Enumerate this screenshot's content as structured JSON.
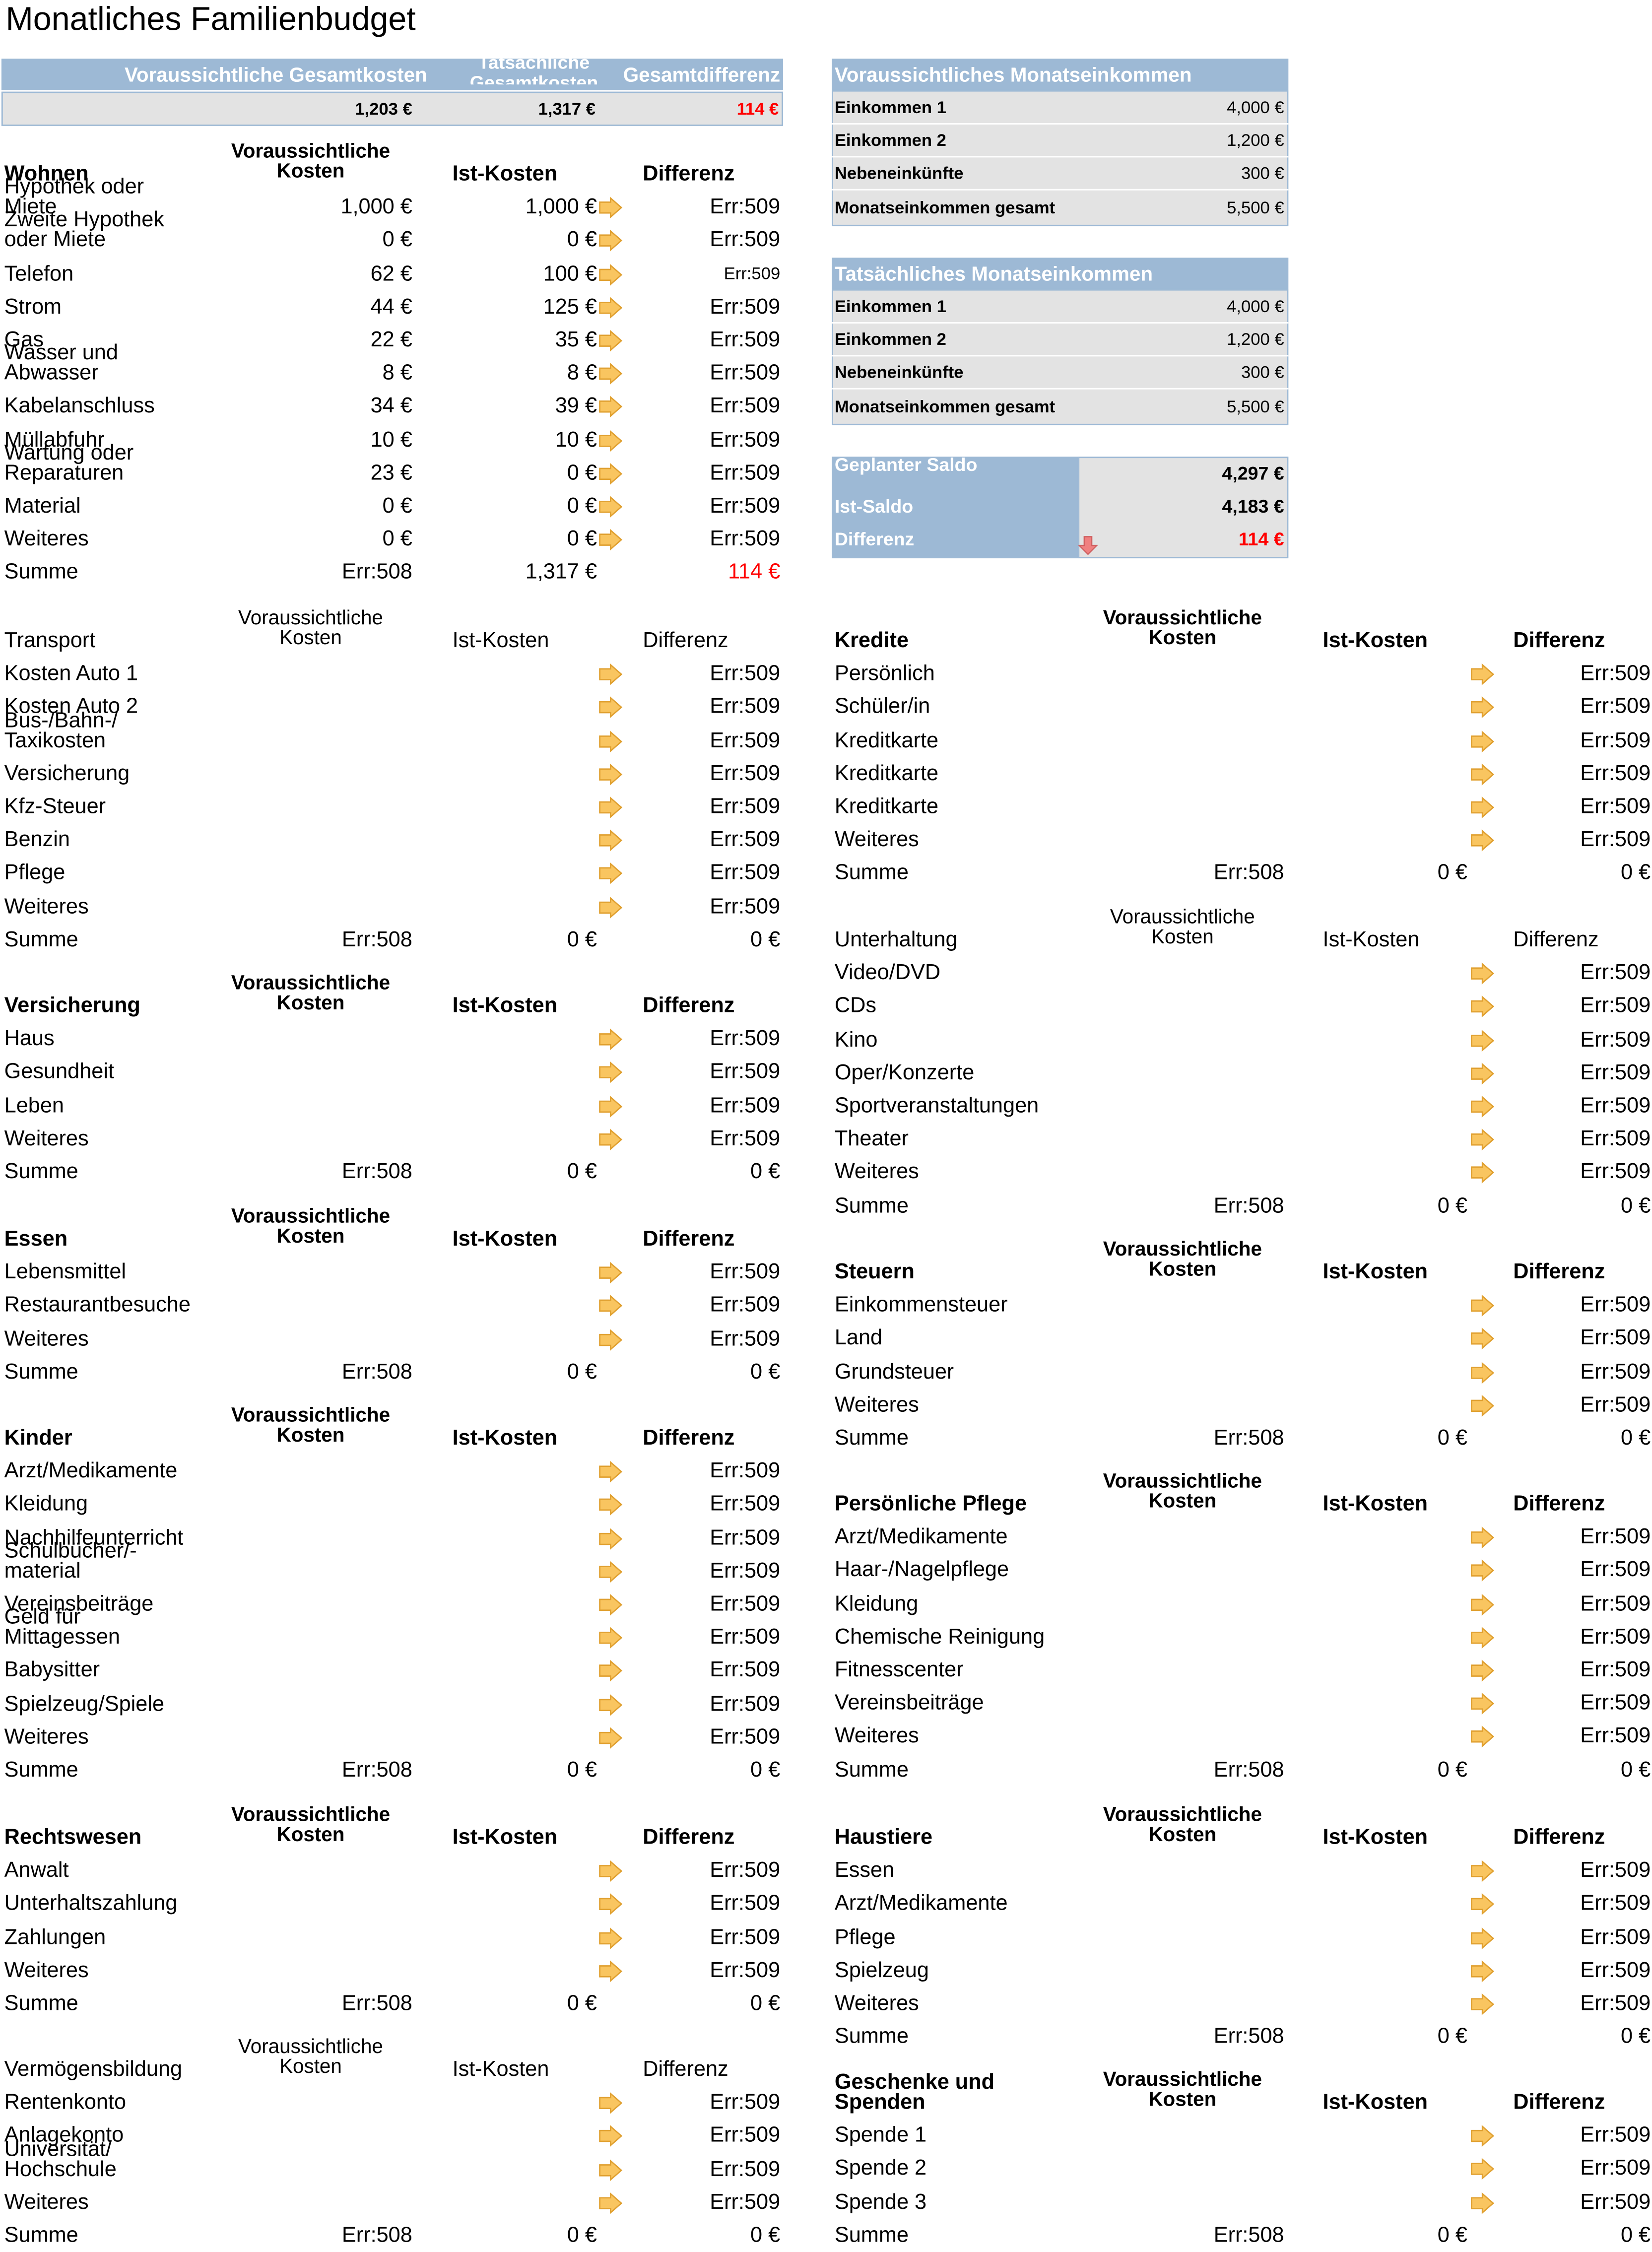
{
  "title": "Monatliches Familienbudget",
  "summary": {
    "headers": [
      "Voraussichtliche Gesamtkosten",
      "Tatsächliche Gesamtkosten",
      "Gesamtdifferenz"
    ],
    "values": [
      "1,203 €",
      "1,317 €",
      "114 €"
    ]
  },
  "income_projected": {
    "header": "Voraussichtliches Monatseinkommen",
    "rows": [
      {
        "label": "Einkommen 1",
        "value": "4,000 €"
      },
      {
        "label": "Einkommen 2",
        "value": "1,200 €"
      },
      {
        "label": "Nebeneinkünfte",
        "value": "300 €"
      },
      {
        "label": "Monatseinkommen gesamt",
        "value": "5,500 €"
      }
    ]
  },
  "income_actual": {
    "header": "Tatsächliches Monatseinkommen",
    "rows": [
      {
        "label": "Einkommen 1",
        "value": "4,000 €"
      },
      {
        "label": "Einkommen 2",
        "value": "1,200 €"
      },
      {
        "label": "Nebeneinkünfte",
        "value": "300 €"
      },
      {
        "label": "Monatseinkommen gesamt",
        "value": "5,500 €"
      }
    ]
  },
  "balance": {
    "rows": [
      {
        "label": "Geplanter Saldo",
        "value": "4,297 €"
      },
      {
        "label": "Ist-Saldo",
        "value": "4,183 €"
      },
      {
        "label": "Differenz",
        "value": "114 €"
      }
    ]
  },
  "colors": {
    "header_blue": "#9db9d5",
    "grey": "#e3e3e3",
    "arrow_orange": "#f9c560",
    "arrow_red": "#f08080",
    "text_red": "#ff0000"
  },
  "col_headers": {
    "projected": "Voraussichtliche Kosten",
    "actual": "Ist-Kosten",
    "diff": "Differenz"
  },
  "sections": [
    {
      "title": "Wohnen",
      "bold": true,
      "rows": [
        {
          "label": "Hypothek oder Miete",
          "two": true,
          "p": "1,000 €",
          "a": "1,000 €",
          "d": "Err:509"
        },
        {
          "label": "Zweite Hypothek oder Miete",
          "two": true,
          "p": "0 €",
          "a": "0 €",
          "d": "Err:509"
        },
        {
          "label": "Telefon",
          "p": "62 €",
          "a": "100 €",
          "d": "Err:509",
          "dsmall": true
        },
        {
          "label": "Strom",
          "p": "44 €",
          "a": "125 €",
          "d": "Err:509"
        },
        {
          "label": "Gas",
          "p": "22 €",
          "a": "35 €",
          "d": "Err:509"
        },
        {
          "label": "Wasser und Abwasser",
          "two": true,
          "p": "8 €",
          "a": "8 €",
          "d": "Err:509"
        },
        {
          "label": "Kabelanschluss",
          "p": "34 €",
          "a": "39 €",
          "d": "Err:509"
        },
        {
          "label": "Müllabfuhr",
          "p": "10 €",
          "a": "10 €",
          "d": "Err:509"
        },
        {
          "label": "Wartung oder Reparaturen",
          "two": true,
          "p": "23 €",
          "a": "0 €",
          "d": "Err:509"
        },
        {
          "label": "Material",
          "p": "0 €",
          "a": "0 €",
          "d": "Err:509"
        },
        {
          "label": "Weiteres",
          "p": "0 €",
          "a": "0 €",
          "d": "Err:509"
        }
      ],
      "sum": {
        "label": "Summe",
        "p": "Err:508",
        "a": "1,317 €",
        "d": "114 €",
        "dred": true
      }
    },
    {
      "title": "Transport",
      "bold": false,
      "rows": [
        {
          "label": "Kosten Auto 1",
          "d": "Err:509"
        },
        {
          "label": "Kosten Auto 2",
          "d": "Err:509"
        },
        {
          "label": "Bus-/Bahn-/ Taxikosten",
          "two": true,
          "d": "Err:509"
        },
        {
          "label": "Versicherung",
          "d": "Err:509"
        },
        {
          "label": "Kfz-Steuer",
          "d": "Err:509"
        },
        {
          "label": "Benzin",
          "d": "Err:509"
        },
        {
          "label": "Pflege",
          "d": "Err:509"
        },
        {
          "label": "Weiteres",
          "d": "Err:509"
        }
      ],
      "sum": {
        "label": "Summe",
        "p": "Err:508",
        "a": "0 €",
        "d": "0 €"
      }
    },
    {
      "title": "Versicherung",
      "bold": true,
      "rows": [
        {
          "label": "Haus",
          "d": "Err:509"
        },
        {
          "label": "Gesundheit",
          "d": "Err:509"
        },
        {
          "label": "Leben",
          "d": "Err:509"
        },
        {
          "label": "Weiteres",
          "d": "Err:509"
        }
      ],
      "sum": {
        "label": "Summe",
        "p": "Err:508",
        "a": "0 €",
        "d": "0 €"
      }
    },
    {
      "title": "Essen",
      "bold": true,
      "rows": [
        {
          "label": "Lebensmittel",
          "d": "Err:509"
        },
        {
          "label": "Restaurantbesuche",
          "d": "Err:509"
        },
        {
          "label": "Weiteres",
          "d": "Err:509"
        }
      ],
      "sum": {
        "label": "Summe",
        "p": "Err:508",
        "a": "0 €",
        "d": "0 €"
      }
    },
    {
      "title": "Kinder",
      "bold": true,
      "rows": [
        {
          "label": "Arzt/Medikamente",
          "d": "Err:509"
        },
        {
          "label": "Kleidung",
          "d": "Err:509"
        },
        {
          "label": "Nachhilfeunterricht",
          "d": "Err:509"
        },
        {
          "label": "Schulbücher/- material",
          "two": true,
          "d": "Err:509"
        },
        {
          "label": "Vereinsbeiträge",
          "d": "Err:509"
        },
        {
          "label": "Geld für Mittagessen",
          "two": true,
          "d": "Err:509"
        },
        {
          "label": "Babysitter",
          "d": "Err:509"
        },
        {
          "label": "Spielzeug/Spiele",
          "d": "Err:509"
        },
        {
          "label": "Weiteres",
          "d": "Err:509"
        }
      ],
      "sum": {
        "label": "Summe",
        "p": "Err:508",
        "a": "0 €",
        "d": "0 €"
      }
    },
    {
      "title": "Rechtswesen",
      "bold": true,
      "rows": [
        {
          "label": "Anwalt",
          "d": "Err:509"
        },
        {
          "label": "Unterhaltszahlung",
          "d": "Err:509"
        },
        {
          "label": "Zahlungen",
          "d": "Err:509"
        },
        {
          "label": "Weiteres",
          "d": "Err:509"
        }
      ],
      "sum": {
        "label": "Summe",
        "p": "Err:508",
        "a": "0 €",
        "d": "0 €"
      }
    },
    {
      "title": "Vermögensbildung",
      "bold": false,
      "rows": [
        {
          "label": "Rentenkonto",
          "d": "Err:509"
        },
        {
          "label": "Anlagekonto",
          "d": "Err:509"
        },
        {
          "label": "Universität/ Hochschule",
          "two": true,
          "d": "Err:509"
        },
        {
          "label": "Weiteres",
          "d": "Err:509"
        }
      ],
      "sum": {
        "label": "Summe",
        "p": "Err:508",
        "a": "0 €",
        "d": "0 €"
      }
    },
    {
      "title": "Kredite",
      "bold": true,
      "rows": [
        {
          "label": "Persönlich",
          "d": "Err:509"
        },
        {
          "label": "Schüler/in",
          "d": "Err:509"
        },
        {
          "label": "Kreditkarte",
          "d": "Err:509"
        },
        {
          "label": "Kreditkarte",
          "d": "Err:509"
        },
        {
          "label": "Kreditkarte",
          "d": "Err:509"
        },
        {
          "label": "Weiteres",
          "d": "Err:509"
        }
      ],
      "sum": {
        "label": "Summe",
        "p": "Err:508",
        "a": "0 €",
        "d": "0 €"
      }
    },
    {
      "title": "Unterhaltung",
      "bold": false,
      "rows": [
        {
          "label": "Video/DVD",
          "d": "Err:509"
        },
        {
          "label": "CDs",
          "d": "Err:509"
        },
        {
          "label": "Kino",
          "d": "Err:509"
        },
        {
          "label": "Oper/Konzerte",
          "d": "Err:509"
        },
        {
          "label": "Sportveranstaltungen",
          "d": "Err:509"
        },
        {
          "label": "Theater",
          "d": "Err:509"
        },
        {
          "label": "Weiteres",
          "d": "Err:509"
        }
      ],
      "sum": {
        "label": "Summe",
        "p": "Err:508",
        "a": "0 €",
        "d": "0 €"
      }
    },
    {
      "title": "Steuern",
      "bold": true,
      "rows": [
        {
          "label": "Einkommensteuer",
          "d": "Err:509"
        },
        {
          "label": "Land",
          "d": "Err:509"
        },
        {
          "label": "Grundsteuer",
          "d": "Err:509"
        },
        {
          "label": "Weiteres",
          "d": "Err:509"
        }
      ],
      "sum": {
        "label": "Summe",
        "p": "Err:508",
        "a": "0 €",
        "d": "0 €"
      }
    },
    {
      "title": "Persönliche Pflege",
      "bold": true,
      "rows": [
        {
          "label": "Arzt/Medikamente",
          "d": "Err:509"
        },
        {
          "label": "Haar-/Nagelpflege",
          "d": "Err:509"
        },
        {
          "label": "Kleidung",
          "d": "Err:509"
        },
        {
          "label": "Chemische Reinigung",
          "d": "Err:509"
        },
        {
          "label": "Fitnesscenter",
          "d": "Err:509"
        },
        {
          "label": "Vereinsbeiträge",
          "d": "Err:509"
        },
        {
          "label": "Weiteres",
          "d": "Err:509"
        }
      ],
      "sum": {
        "label": "Summe",
        "p": "Err:508",
        "a": "0 €",
        "d": "0 €"
      }
    },
    {
      "title": "Haustiere",
      "bold": true,
      "rows": [
        {
          "label": "Essen",
          "d": "Err:509"
        },
        {
          "label": "Arzt/Medikamente",
          "d": "Err:509"
        },
        {
          "label": "Pflege",
          "d": "Err:509"
        },
        {
          "label": "Spielzeug",
          "d": "Err:509"
        },
        {
          "label": "Weiteres",
          "d": "Err:509"
        }
      ],
      "sum": {
        "label": "Summe",
        "p": "Err:508",
        "a": "0 €",
        "d": "0 €"
      }
    },
    {
      "title": "Geschenke und Spenden",
      "bold": true,
      "two": true,
      "rows": [
        {
          "label": "Spende 1",
          "d": "Err:509"
        },
        {
          "label": "Spende 2",
          "d": "Err:509"
        },
        {
          "label": "Spende 3",
          "d": "Err:509"
        }
      ],
      "sum": {
        "label": "Summe",
        "p": "Err:508",
        "a": "0 €",
        "d": "0 €"
      }
    }
  ]
}
